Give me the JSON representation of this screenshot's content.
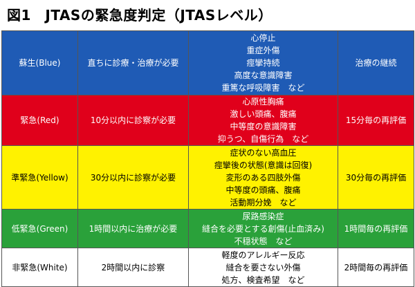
{
  "title": "図1　JTASの緊急度判定（JTASレベル）",
  "rows": [
    {
      "level": "蘇生(Blue)",
      "time": "直ちに診療・治療が必要",
      "symptoms": [
        "心停止",
        "重症外傷",
        "痙攣持続",
        "高度な意識障害",
        "重篤な呼吸障害　など"
      ],
      "reassess": "治療の継続",
      "bg": "#1f5bb5",
      "fg": "#ffffff"
    },
    {
      "level": "緊急(Red)",
      "time": "10分以内に診察が必要",
      "symptoms": [
        "心原性胸痛",
        "激しい頭痛、腹痛",
        "中等度の意識障害",
        "抑うつ、自傷行為　など"
      ],
      "reassess": "15分毎の再評価",
      "bg": "#e0001b",
      "fg": "#ffffff"
    },
    {
      "level": "準緊急(Yellow)",
      "time": "30分以内に診察が必要",
      "symptoms": [
        "症状のない高血圧",
        "痙攣後の状態(意識は回復)",
        "変形のある四肢外傷",
        "中等度の頭痛、腹痛",
        "活動期分娩　など"
      ],
      "reassess": "30分毎の再評価",
      "bg": "#fff200",
      "fg": "#000000"
    },
    {
      "level": "低緊急(Green)",
      "time": "1時間以内に治療が必要",
      "symptoms": [
        "尿路感染症",
        "縫合を必要とする創傷(止血済み)",
        "不穏状態　など"
      ],
      "reassess": "1時間毎の再評価",
      "bg": "#2aa13a",
      "fg": "#ffffff"
    },
    {
      "level": "非緊急(White)",
      "time": "2時間以内に診察",
      "symptoms": [
        "軽度のアレルギー反応",
        "縫合を要さない外傷",
        "処方、検査希望　など"
      ],
      "reassess": "2時間毎の再評価",
      "bg": "#ffffff",
      "fg": "#000000"
    }
  ]
}
